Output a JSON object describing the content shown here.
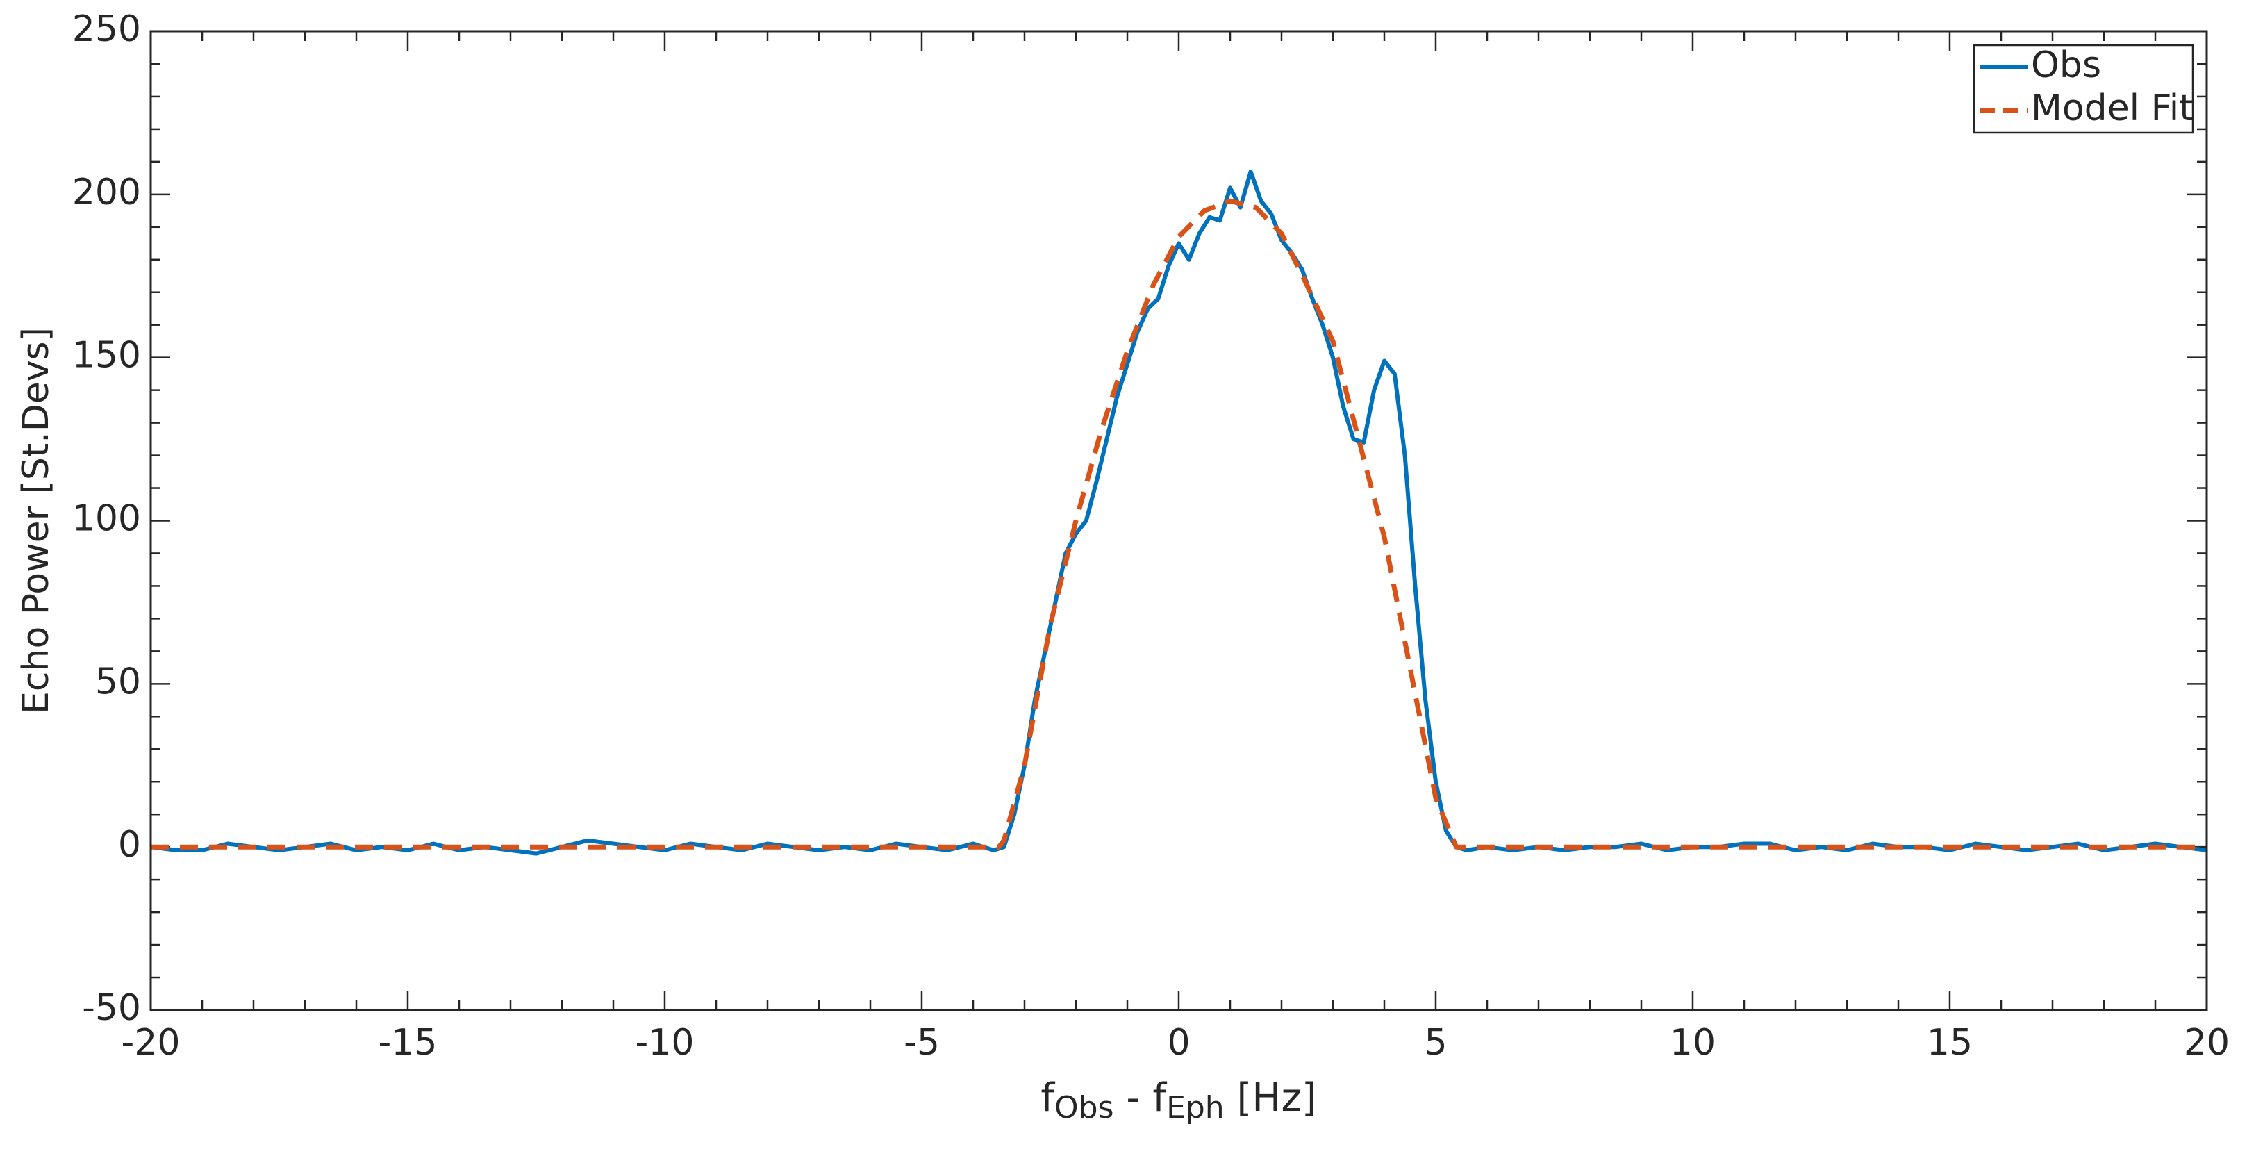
{
  "chart_data": {
    "type": "line",
    "xlabel": [
      {
        "text": "f"
      },
      {
        "text": "Obs",
        "sub": true
      },
      {
        "text": " - f"
      },
      {
        "text": "Eph",
        "sub": true
      },
      {
        "text": " [Hz]"
      }
    ],
    "ylabel": "Echo Power [St.Devs]",
    "xlim": [
      -20,
      20
    ],
    "xticks": [
      -20,
      -15,
      -10,
      -5,
      0,
      5,
      10,
      15,
      20
    ],
    "ylim": [
      -50,
      250
    ],
    "yticks": [
      -50,
      0,
      50,
      100,
      150,
      200,
      250
    ],
    "legend": "upper right",
    "grid": false,
    "series": [
      {
        "name": "Obs",
        "color": "#0072bd",
        "dash": false,
        "x": [
          -20,
          -19.5,
          -19,
          -18.5,
          -18,
          -17.5,
          -17,
          -16.5,
          -16,
          -15.5,
          -15,
          -14.5,
          -14,
          -13.5,
          -13,
          -12.5,
          -12,
          -11.5,
          -11,
          -10.5,
          -10,
          -9.5,
          -9,
          -8.5,
          -8,
          -7.5,
          -7,
          -6.5,
          -6,
          -5.5,
          -5,
          -4.5,
          -4,
          -3.6,
          -3.4,
          -3.2,
          -3,
          -2.8,
          -2.6,
          -2.4,
          -2.2,
          -2,
          -1.8,
          -1.6,
          -1.4,
          -1.2,
          -1,
          -0.8,
          -0.6,
          -0.4,
          -0.2,
          0,
          0.2,
          0.4,
          0.6,
          0.8,
          1,
          1.2,
          1.4,
          1.6,
          1.8,
          2,
          2.2,
          2.4,
          2.6,
          2.8,
          3,
          3.2,
          3.4,
          3.6,
          3.8,
          4,
          4.2,
          4.4,
          4.6,
          4.8,
          5,
          5.2,
          5.4,
          5.6,
          6,
          6.5,
          7,
          7.5,
          8,
          8.5,
          9,
          9.5,
          10,
          10.5,
          11,
          11.5,
          12,
          12.5,
          13,
          13.5,
          14,
          14.5,
          15,
          15.5,
          16,
          16.5,
          17,
          17.5,
          18,
          18.5,
          19,
          19.5,
          20
        ],
        "values": [
          0,
          -1,
          -1,
          1,
          0,
          -1,
          0,
          1,
          -1,
          0,
          -1,
          1,
          -1,
          0,
          -1,
          -2,
          0,
          2,
          1,
          0,
          -1,
          1,
          0,
          -1,
          1,
          0,
          -1,
          0,
          -1,
          1,
          0,
          -1,
          1,
          -1,
          0,
          10,
          25,
          45,
          60,
          75,
          90,
          96,
          100,
          112,
          125,
          138,
          148,
          158,
          165,
          168,
          178,
          185,
          180,
          188,
          193,
          192,
          202,
          196,
          207,
          198,
          194,
          186,
          182,
          177,
          168,
          160,
          150,
          135,
          125,
          124,
          140,
          149,
          145,
          120,
          80,
          45,
          20,
          5,
          0,
          -1,
          0,
          -1,
          0,
          -1,
          0,
          0,
          1,
          -1,
          0,
          0,
          1,
          1,
          -1,
          0,
          -1,
          1,
          0,
          0,
          -1,
          1,
          0,
          -1,
          0,
          1,
          -1,
          0,
          1,
          0,
          -1
        ]
      },
      {
        "name": "Model Fit",
        "color": "#d95319",
        "dash": true,
        "x": [
          -20,
          -3.5,
          -3.4,
          -3,
          -2.5,
          -2,
          -1.5,
          -1,
          -0.5,
          0,
          0.5,
          1,
          1.5,
          2,
          2.5,
          3,
          3.5,
          4,
          4.5,
          5,
          5.4,
          20
        ],
        "values": [
          0,
          0,
          2,
          25,
          68,
          100,
          128,
          152,
          172,
          187,
          195,
          198,
          196,
          188,
          172,
          155,
          125,
          95,
          55,
          15,
          0,
          0
        ]
      }
    ]
  }
}
